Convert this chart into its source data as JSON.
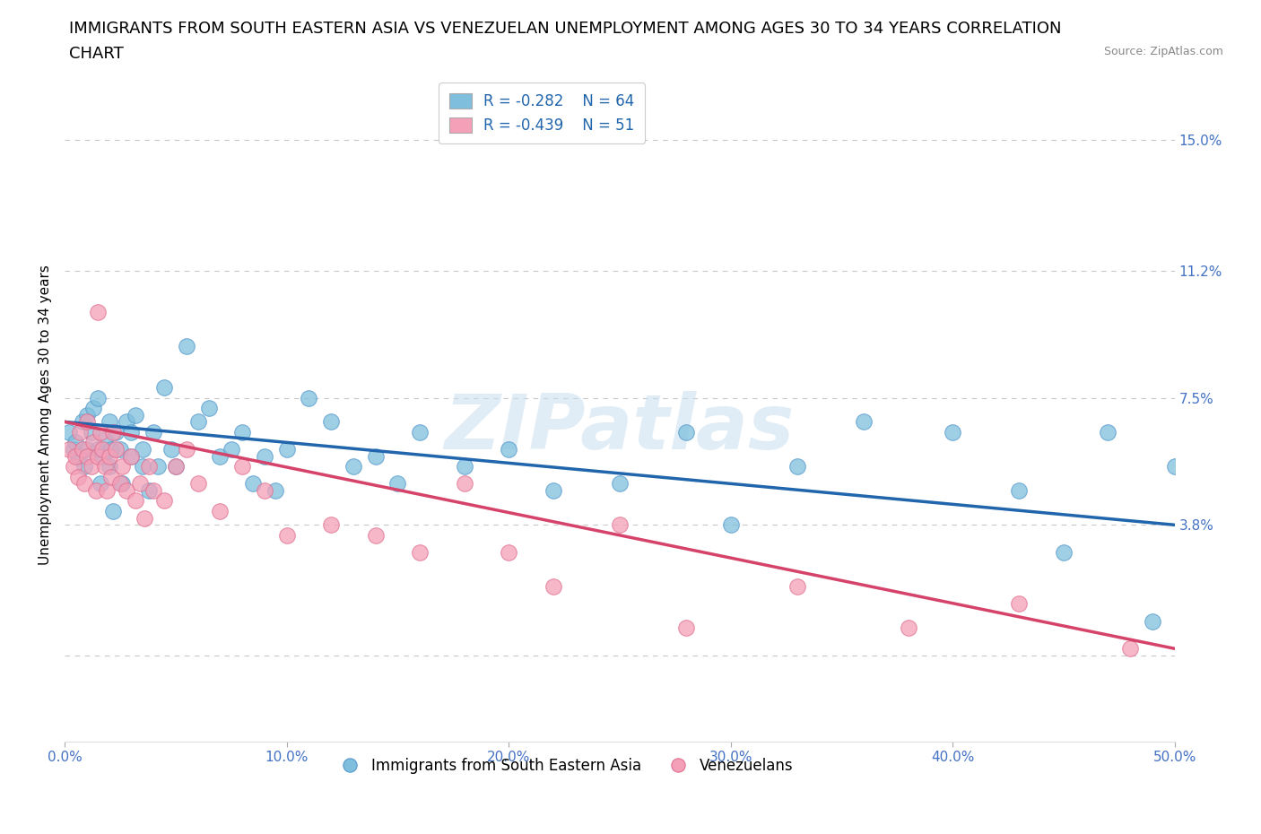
{
  "title_line1": "IMMIGRANTS FROM SOUTH EASTERN ASIA VS VENEZUELAN UNEMPLOYMENT AMONG AGES 30 TO 34 YEARS CORRELATION",
  "title_line2": "CHART",
  "source": "Source: ZipAtlas.com",
  "ylabel": "Unemployment Among Ages 30 to 34 years",
  "xlim": [
    0.0,
    0.5
  ],
  "ylim": [
    -0.025,
    0.165
  ],
  "yticks": [
    0.0,
    0.038,
    0.075,
    0.112,
    0.15
  ],
  "ytick_labels": [
    "",
    "3.8%",
    "7.5%",
    "11.2%",
    "15.0%"
  ],
  "xticks": [
    0.0,
    0.1,
    0.2,
    0.3,
    0.4,
    0.5
  ],
  "xtick_labels": [
    "0.0%",
    "10.0%",
    "20.0%",
    "30.0%",
    "40.0%",
    "50.0%"
  ],
  "blue_color": "#7fbfdd",
  "pink_color": "#f4a0b8",
  "blue_line_color": "#2166ac",
  "pink_line_color": "#d6436a",
  "legend_R1": "R = -0.282",
  "legend_N1": "N = 64",
  "legend_R2": "R = -0.439",
  "legend_N2": "N = 51",
  "watermark": "ZIPatlas",
  "legend_label1": "Immigrants from South Eastern Asia",
  "legend_label2": "Venezuelans",
  "blue_scatter_x": [
    0.002,
    0.004,
    0.005,
    0.006,
    0.008,
    0.009,
    0.01,
    0.01,
    0.012,
    0.013,
    0.015,
    0.015,
    0.016,
    0.017,
    0.018,
    0.02,
    0.02,
    0.021,
    0.022,
    0.023,
    0.025,
    0.026,
    0.028,
    0.03,
    0.03,
    0.032,
    0.035,
    0.035,
    0.038,
    0.04,
    0.042,
    0.045,
    0.048,
    0.05,
    0.055,
    0.06,
    0.065,
    0.07,
    0.075,
    0.08,
    0.085,
    0.09,
    0.095,
    0.1,
    0.11,
    0.12,
    0.13,
    0.14,
    0.15,
    0.16,
    0.18,
    0.2,
    0.22,
    0.25,
    0.28,
    0.3,
    0.33,
    0.36,
    0.4,
    0.43,
    0.45,
    0.47,
    0.49,
    0.5
  ],
  "blue_scatter_y": [
    0.065,
    0.06,
    0.062,
    0.058,
    0.068,
    0.055,
    0.06,
    0.07,
    0.065,
    0.072,
    0.06,
    0.075,
    0.05,
    0.058,
    0.063,
    0.055,
    0.068,
    0.06,
    0.042,
    0.065,
    0.06,
    0.05,
    0.068,
    0.058,
    0.065,
    0.07,
    0.055,
    0.06,
    0.048,
    0.065,
    0.055,
    0.078,
    0.06,
    0.055,
    0.09,
    0.068,
    0.072,
    0.058,
    0.06,
    0.065,
    0.05,
    0.058,
    0.048,
    0.06,
    0.075,
    0.068,
    0.055,
    0.058,
    0.05,
    0.065,
    0.055,
    0.06,
    0.048,
    0.05,
    0.065,
    0.038,
    0.055,
    0.068,
    0.065,
    0.048,
    0.03,
    0.065,
    0.01,
    0.055
  ],
  "pink_scatter_x": [
    0.002,
    0.004,
    0.005,
    0.006,
    0.007,
    0.008,
    0.009,
    0.01,
    0.01,
    0.012,
    0.013,
    0.014,
    0.015,
    0.015,
    0.016,
    0.017,
    0.018,
    0.019,
    0.02,
    0.021,
    0.022,
    0.023,
    0.025,
    0.026,
    0.028,
    0.03,
    0.032,
    0.034,
    0.036,
    0.038,
    0.04,
    0.045,
    0.05,
    0.055,
    0.06,
    0.07,
    0.08,
    0.09,
    0.1,
    0.12,
    0.14,
    0.16,
    0.18,
    0.2,
    0.22,
    0.25,
    0.28,
    0.33,
    0.38,
    0.43,
    0.48
  ],
  "pink_scatter_y": [
    0.06,
    0.055,
    0.058,
    0.052,
    0.065,
    0.06,
    0.05,
    0.058,
    0.068,
    0.055,
    0.062,
    0.048,
    0.058,
    0.1,
    0.065,
    0.06,
    0.055,
    0.048,
    0.058,
    0.052,
    0.065,
    0.06,
    0.05,
    0.055,
    0.048,
    0.058,
    0.045,
    0.05,
    0.04,
    0.055,
    0.048,
    0.045,
    0.055,
    0.06,
    0.05,
    0.042,
    0.055,
    0.048,
    0.035,
    0.038,
    0.035,
    0.03,
    0.05,
    0.03,
    0.02,
    0.038,
    0.008,
    0.02,
    0.008,
    0.015,
    0.002
  ],
  "blue_trend_x": [
    0.0,
    0.5
  ],
  "blue_trend_y": [
    0.068,
    0.038
  ],
  "pink_trend_x": [
    0.0,
    0.5
  ],
  "pink_trend_y": [
    0.068,
    0.002
  ],
  "background_color": "#ffffff",
  "grid_color": "#c8c8c8",
  "tick_color": "#4472c4",
  "title_fontsize": 13,
  "axis_label_fontsize": 11,
  "tick_fontsize": 11,
  "legend_fontsize": 12
}
